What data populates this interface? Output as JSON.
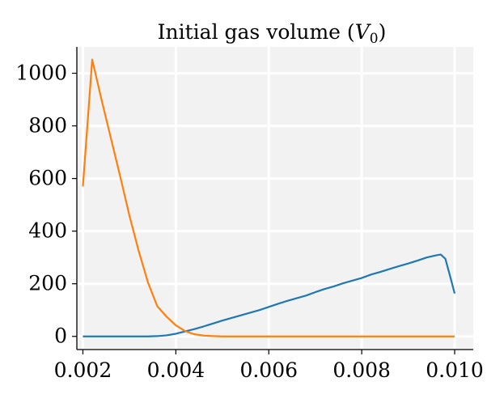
{
  "chart_data": {
    "type": "line",
    "title_prefix": "Initial gas volume (",
    "title_var": "V",
    "title_sub": "0",
    "title_suffix": ")",
    "xlabel": "",
    "ylabel": "",
    "xlim": [
      0.00187,
      0.0104
    ],
    "ylim": [
      -50,
      1100
    ],
    "xticks": [
      0.002,
      0.004,
      0.006,
      0.008,
      0.01
    ],
    "xtick_labels": [
      "0.002",
      "0.004",
      "0.006",
      "0.008",
      "0.010"
    ],
    "yticks": [
      0,
      200,
      400,
      600,
      800,
      1000
    ],
    "ytick_labels": [
      "0",
      "200",
      "400",
      "600",
      "800",
      "1000"
    ],
    "grid": true,
    "background": "#f2f2f2",
    "series": [
      {
        "color": "#1f77b4",
        "x": [
          0.002,
          0.0022,
          0.0024,
          0.0026,
          0.0028,
          0.003,
          0.0032,
          0.0034,
          0.0036,
          0.0038,
          0.004,
          0.0042,
          0.0044,
          0.0046,
          0.0048,
          0.005,
          0.0052,
          0.0054,
          0.0056,
          0.0058,
          0.006,
          0.0062,
          0.0064,
          0.0066,
          0.0068,
          0.007,
          0.0072,
          0.0074,
          0.0076,
          0.0078,
          0.008,
          0.0082,
          0.0084,
          0.0086,
          0.0088,
          0.009,
          0.0092,
          0.0094,
          0.0096,
          0.0097,
          0.0098,
          0.0099,
          0.01
        ],
        "y": [
          0,
          0,
          0,
          0,
          0,
          0,
          0,
          0,
          1,
          4,
          10,
          19,
          28,
          38,
          49,
          60,
          70,
          80,
          90,
          100,
          112,
          124,
          135,
          145,
          155,
          168,
          180,
          190,
          202,
          212,
          222,
          235,
          245,
          256,
          267,
          277,
          288,
          300,
          308,
          311,
          295,
          230,
          163
        ]
      },
      {
        "color": "#ff7f0e",
        "x": [
          0.002,
          0.0022,
          0.0024,
          0.0026,
          0.0028,
          0.003,
          0.0032,
          0.0034,
          0.0036,
          0.0038,
          0.004,
          0.0042,
          0.0044,
          0.0046,
          0.0048,
          0.005,
          0.0052,
          0.0054,
          0.0056,
          0.0058,
          0.006,
          0.0062,
          0.0064,
          0.0066,
          0.0068,
          0.007,
          0.0072,
          0.0074,
          0.0076,
          0.0078,
          0.008,
          0.0082,
          0.0084,
          0.0086,
          0.0088,
          0.009,
          0.0092,
          0.0094,
          0.0096,
          0.0098,
          0.01
        ],
        "y": [
          570,
          1052,
          900,
          755,
          610,
          460,
          325,
          205,
          115,
          75,
          42,
          20,
          8,
          3,
          1,
          0,
          0,
          0,
          0,
          0,
          0,
          0,
          0,
          0,
          0,
          0,
          0,
          0,
          0,
          0,
          0,
          0,
          0,
          0,
          0,
          0,
          0,
          0,
          0,
          0,
          0
        ]
      }
    ]
  }
}
